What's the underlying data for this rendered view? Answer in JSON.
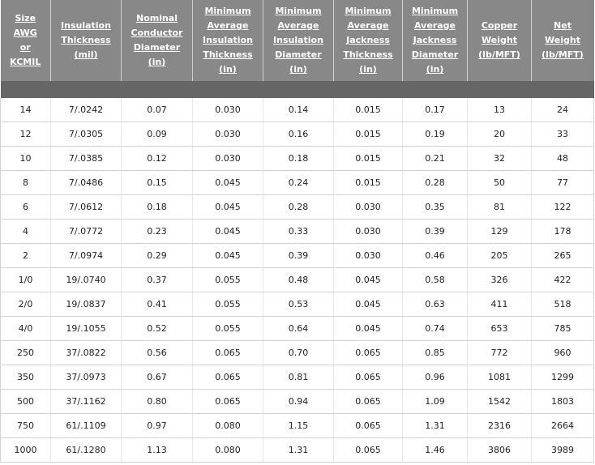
{
  "table": {
    "headers": [
      [
        "Size",
        "AWG",
        "or",
        "KCMIL"
      ],
      [
        "Insulation",
        "Thickness",
        "(mil)"
      ],
      [
        "Nominal",
        "Conductor",
        "Diameter",
        "(in)"
      ],
      [
        "Minimum",
        "Average",
        "Insulation",
        "Thickness",
        "(in)"
      ],
      [
        "Minimum",
        "Average",
        "Insulation",
        "Diameter",
        "(in)"
      ],
      [
        "Minimum",
        "Average",
        "Jackness",
        "Thickness",
        "(in)"
      ],
      [
        "Minimum",
        "Average",
        "Jackness",
        "Diameter",
        "(in)"
      ],
      [
        "Copper",
        "Weight",
        "(lb/MFT)"
      ],
      [
        "Net",
        "Weight",
        "(lb/MFT)"
      ]
    ],
    "rows": [
      [
        "14",
        "7/.0242",
        "0.07",
        "0.030",
        "0.14",
        "0.015",
        "0.17",
        "13",
        "24"
      ],
      [
        "12",
        "7/.0305",
        "0.09",
        "0.030",
        "0.16",
        "0.015",
        "0.19",
        "20",
        "33"
      ],
      [
        "10",
        "7/.0385",
        "0.12",
        "0.030",
        "0.18",
        "0.015",
        "0.21",
        "32",
        "48"
      ],
      [
        "8",
        "7/.0486",
        "0.15",
        "0.045",
        "0.24",
        "0.015",
        "0.28",
        "50",
        "77"
      ],
      [
        "6",
        "7/.0612",
        "0.18",
        "0.045",
        "0.28",
        "0.030",
        "0.35",
        "81",
        "122"
      ],
      [
        "4",
        "7/.0772",
        "0.23",
        "0.045",
        "0.33",
        "0.030",
        "0.39",
        "129",
        "178"
      ],
      [
        "2",
        "7/.0974",
        "0.29",
        "0.045",
        "0.39",
        "0.030",
        "0.46",
        "205",
        "265"
      ],
      [
        "1/0",
        "19/.0740",
        "0.37",
        "0.055",
        "0.48",
        "0.045",
        "0.58",
        "326",
        "422"
      ],
      [
        "2/0",
        "19/.0837",
        "0.41",
        "0.055",
        "0.53",
        "0.045",
        "0.63",
        "411",
        "518"
      ],
      [
        "4/0",
        "19/.1055",
        "0.52",
        "0.055",
        "0.64",
        "0.045",
        "0.74",
        "653",
        "785"
      ],
      [
        "250",
        "37/.0822",
        "0.56",
        "0.065",
        "0.70",
        "0.065",
        "0.85",
        "772",
        "960"
      ],
      [
        "350",
        "37/.0973",
        "0.67",
        "0.065",
        "0.81",
        "0.065",
        "0.96",
        "1081",
        "1299"
      ],
      [
        "500",
        "37/.1162",
        "0.80",
        "0.065",
        "0.94",
        "0.065",
        "1.09",
        "1542",
        "1803"
      ],
      [
        "750",
        "61/.1109",
        "0.97",
        "0.080",
        "1.15",
        "0.065",
        "1.31",
        "2316",
        "2664"
      ],
      [
        "1000",
        "61/.1280",
        "1.13",
        "0.080",
        "1.31",
        "0.065",
        "1.46",
        "3806",
        "3989"
      ]
    ]
  },
  "colors": {
    "header_bg": "#888888",
    "band_bg": "#666666",
    "header_text": "#ffffff",
    "row_divider": "#d3d3d3"
  }
}
